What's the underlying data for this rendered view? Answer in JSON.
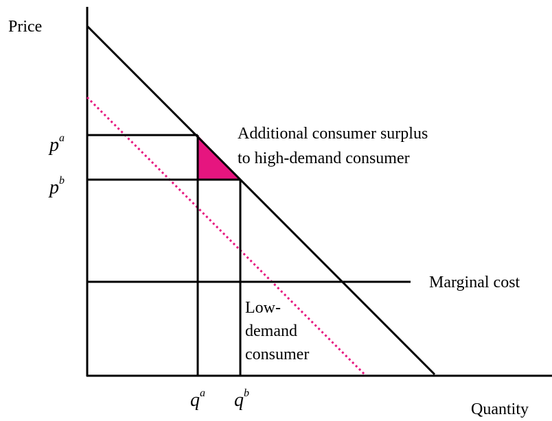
{
  "axes": {
    "y_label": "Price",
    "x_label": "Quantity"
  },
  "price_labels": [
    {
      "base": "p",
      "sup": "a"
    },
    {
      "base": "p",
      "sup": "b"
    }
  ],
  "quantity_labels": [
    {
      "base": "q",
      "sup": "a"
    },
    {
      "base": "q",
      "sup": "b"
    }
  ],
  "annotations": {
    "surplus": [
      "Additional consumer surplus",
      "to high-demand consumer"
    ],
    "marginal_cost": "Marginal cost",
    "low_demand": [
      "Low-",
      "demand",
      "consumer"
    ]
  }
}
